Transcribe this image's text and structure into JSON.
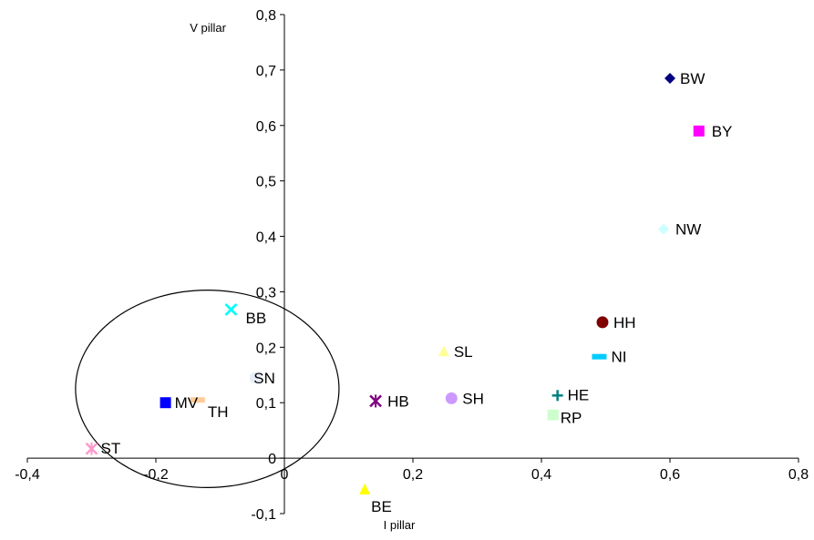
{
  "chart_data": {
    "type": "scatter",
    "xlabel": "I pillar",
    "ylabel": "V pillar",
    "xlim": [
      -0.4,
      0.8
    ],
    "ylim": [
      -0.1,
      0.8
    ],
    "x_ticks": [
      "-0,4",
      "-0,2",
      "0",
      "0,2",
      "0,4",
      "0,6",
      "0,8"
    ],
    "y_ticks": [
      "-0,1",
      "0",
      "0,1",
      "0,2",
      "0,3",
      "0,4",
      "0,5",
      "0,6",
      "0,7",
      "0,8"
    ],
    "grid": false,
    "points": [
      {
        "label": "BW",
        "x": 0.6,
        "y": 0.685,
        "marker": "diamond",
        "color": "#000080"
      },
      {
        "label": "BY",
        "x": 0.645,
        "y": 0.59,
        "marker": "square",
        "color": "#ff00ff"
      },
      {
        "label": "NW",
        "x": 0.59,
        "y": 0.413,
        "marker": "diamond",
        "color": "#ccffff"
      },
      {
        "label": "HH",
        "x": 0.495,
        "y": 0.245,
        "marker": "circle",
        "color": "#800000"
      },
      {
        "label": "NI",
        "x": 0.49,
        "y": 0.183,
        "marker": "dash",
        "color": "#00ccff"
      },
      {
        "label": "HE",
        "x": 0.425,
        "y": 0.113,
        "marker": "plus",
        "color": "#008080"
      },
      {
        "label": "RP",
        "x": 0.418,
        "y": 0.078,
        "marker": "square",
        "color": "#ccffcc"
      },
      {
        "label": "SH",
        "x": 0.26,
        "y": 0.108,
        "marker": "circle",
        "color": "#cc99ff"
      },
      {
        "label": "SL",
        "x": 0.248,
        "y": 0.192,
        "marker": "triangle",
        "color": "#ffff99"
      },
      {
        "label": "HB",
        "x": 0.142,
        "y": 0.103,
        "marker": "star",
        "color": "#800080"
      },
      {
        "label": "BE",
        "x": 0.125,
        "y": -0.057,
        "marker": "triangle",
        "color": "#ffff00"
      },
      {
        "label": "BB",
        "x": -0.083,
        "y": 0.268,
        "marker": "x",
        "color": "#00ffff"
      },
      {
        "label": "SN",
        "x": -0.045,
        "y": 0.145,
        "marker": "circle",
        "color": "#e8eef8"
      },
      {
        "label": "TH",
        "x": -0.135,
        "y": 0.105,
        "marker": "dash",
        "color": "#ffcc99"
      },
      {
        "label": "MV",
        "x": -0.185,
        "y": 0.1,
        "marker": "square",
        "color": "#0000ff"
      },
      {
        "label": "ST",
        "x": -0.3,
        "y": 0.017,
        "marker": "star",
        "color": "#ff99cc"
      }
    ],
    "annotations": [
      {
        "type": "ellipse",
        "cx": -0.12,
        "cy": 0.125,
        "rx": 0.205,
        "ry": 0.178,
        "color": "#000000"
      }
    ]
  }
}
